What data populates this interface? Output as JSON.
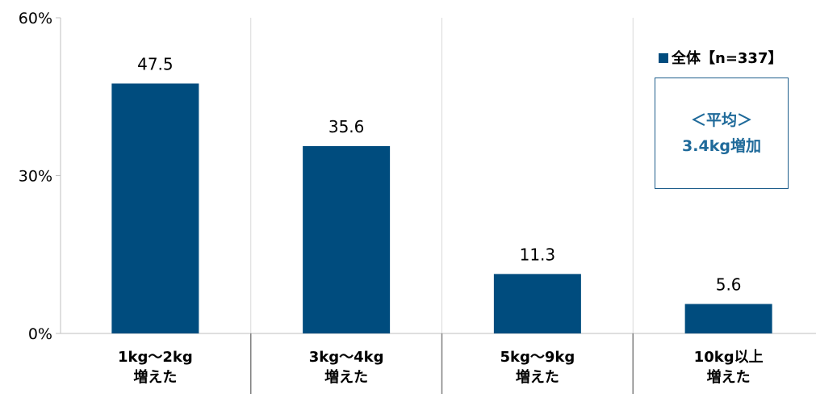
{
  "chart_data": {
    "type": "bar",
    "categories": [
      [
        "1kg～2kg",
        "増えた"
      ],
      [
        "3kg～4kg",
        "増えた"
      ],
      [
        "5kg～9kg",
        "増えた"
      ],
      [
        "10kg以上",
        "増えた"
      ]
    ],
    "series": [
      {
        "name": "全体【n=337】",
        "values": [
          47.5,
          35.6,
          11.3,
          5.6
        ],
        "color": "#004c7e"
      }
    ],
    "data_labels": [
      "47.5",
      "35.6",
      "11.3",
      "5.6"
    ],
    "ylim": [
      0,
      60
    ],
    "yticks": [
      0,
      30,
      60
    ],
    "ytick_labels": [
      "0%",
      "30%",
      "60%"
    ],
    "grid": "vertical separators",
    "legend_position": "top-right",
    "title": "",
    "xlabel": "",
    "ylabel": ""
  },
  "annotation": {
    "line1": "＜平均＞",
    "line2": "3.4kg増加",
    "color": "#1f6a9a"
  },
  "colors": {
    "bar": "#004c7e",
    "grid": "#d9d9d9",
    "axis": "#bfbfbf"
  }
}
